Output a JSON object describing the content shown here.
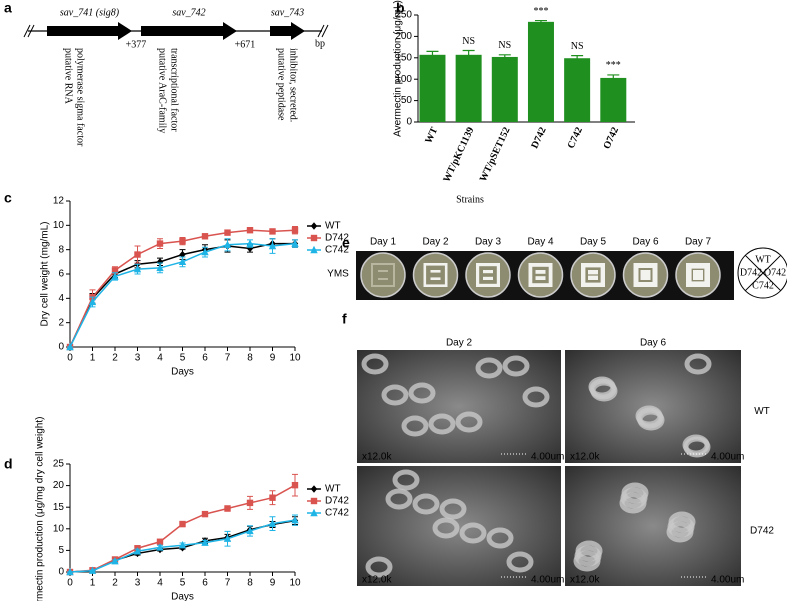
{
  "panel_labels": [
    "a",
    "b",
    "c",
    "d",
    "e",
    "f"
  ],
  "gene_map": {
    "genes": [
      {
        "name": "sav_741 (sig8)",
        "description": [
          "putative RNA",
          "polymerase sigma factor"
        ]
      },
      {
        "name": "sav_742",
        "description": [
          "putative AraC-family",
          "transcriptional factor"
        ]
      },
      {
        "name": "sav_743",
        "description": [
          "putative peptidase",
          "inhibitor, secreted."
        ]
      }
    ],
    "spacers": [
      "+377",
      "+671"
    ],
    "unit": "bp"
  },
  "chart_data": [
    {
      "type": "bar",
      "y_label": "Avermectin production (μg/mL)",
      "x_label": "Strains",
      "categories": [
        "WT",
        "WT/pKC1139",
        "WT/pSET152",
        "D742",
        "C742",
        "O742"
      ],
      "values": [
        157,
        157,
        152,
        234,
        149,
        103
      ],
      "errors": [
        8,
        10,
        5,
        3,
        6,
        7
      ],
      "annotations": [
        null,
        "NS",
        "NS",
        "***",
        "NS",
        "***"
      ],
      "color": "#1f8f1f",
      "ylim": [
        0,
        250
      ],
      "yticks": [
        0,
        50,
        100,
        150,
        200,
        250
      ]
    },
    {
      "type": "line",
      "y_label": "Dry cell weight (mg/mL)",
      "x_label": "Days",
      "x": [
        0,
        1,
        2,
        3,
        4,
        5,
        6,
        7,
        8,
        9,
        10
      ],
      "xlim": [
        0,
        10
      ],
      "xticks": [
        0,
        1,
        2,
        3,
        4,
        5,
        6,
        7,
        8,
        9,
        10
      ],
      "ylim": [
        0,
        12
      ],
      "yticks": [
        0,
        2,
        4,
        6,
        8,
        10,
        12
      ],
      "legend": "right",
      "series": [
        {
          "name": "WT",
          "color": "#000000",
          "marker": "diamond",
          "values": [
            0,
            4.0,
            6.0,
            6.8,
            7.0,
            7.6,
            8.0,
            8.3,
            8.1,
            8.5,
            8.5
          ],
          "errors": [
            0,
            0.4,
            0.3,
            0.3,
            0.3,
            0.4,
            0.4,
            0.5,
            0.3,
            0.4,
            0.3
          ]
        },
        {
          "name": "D742",
          "color": "#d9534f",
          "marker": "square",
          "values": [
            0,
            4.1,
            6.3,
            7.6,
            8.5,
            8.7,
            9.1,
            9.4,
            9.6,
            9.5,
            9.6
          ],
          "errors": [
            0,
            0.6,
            0.3,
            0.7,
            0.4,
            0.3,
            0.2,
            0.1,
            0.1,
            0.1,
            0.3
          ]
        },
        {
          "name": "C742",
          "color": "#1eb4e6",
          "marker": "triangle",
          "values": [
            0,
            3.7,
            5.8,
            6.4,
            6.5,
            7.0,
            7.8,
            8.4,
            8.5,
            8.3,
            8.5
          ],
          "errors": [
            0,
            0.4,
            0.3,
            0.4,
            0.4,
            0.4,
            0.4,
            0.5,
            0.3,
            0.6,
            0.3
          ]
        }
      ]
    },
    {
      "type": "line",
      "y_label": "Avermectin production (μg/mg dry cell weight)",
      "x_label": "Days",
      "x": [
        0,
        1,
        2,
        3,
        4,
        5,
        6,
        7,
        8,
        9,
        10
      ],
      "xlim": [
        0,
        10
      ],
      "xticks": [
        0,
        1,
        2,
        3,
        4,
        5,
        6,
        7,
        8,
        9,
        10
      ],
      "ylim": [
        0,
        25
      ],
      "yticks": [
        0,
        5,
        10,
        15,
        20,
        25
      ],
      "legend": "right",
      "series": [
        {
          "name": "WT",
          "color": "#000000",
          "marker": "diamond",
          "values": [
            0,
            0.3,
            2.7,
            4.3,
            5.2,
            5.6,
            7.2,
            8.0,
            9.8,
            11.0,
            11.9
          ],
          "errors": [
            0,
            0.1,
            0.3,
            0.4,
            0.3,
            0.3,
            0.6,
            0.7,
            0.8,
            0.7,
            0.9
          ]
        },
        {
          "name": "D742",
          "color": "#d9534f",
          "marker": "square",
          "values": [
            0,
            0.4,
            2.9,
            5.5,
            7.0,
            11.1,
            13.4,
            14.7,
            16.0,
            17.2,
            20.1
          ],
          "errors": [
            0,
            0.1,
            0.3,
            0.5,
            0.5,
            0.6,
            0.4,
            0.6,
            1.5,
            1.6,
            2.5
          ]
        },
        {
          "name": "C742",
          "color": "#1eb4e6",
          "marker": "triangle",
          "values": [
            0,
            0.3,
            2.5,
            4.8,
            5.7,
            6.2,
            6.8,
            7.7,
            9.5,
            11.2,
            12.0
          ],
          "errors": [
            0,
            0.1,
            0.3,
            0.5,
            0.5,
            0.5,
            0.5,
            1.7,
            1.2,
            1.6,
            1.2
          ]
        }
      ]
    }
  ],
  "plates": {
    "days": [
      "Day 1",
      "Day 2",
      "Day 3",
      "Day 4",
      "Day 5",
      "Day 6",
      "Day 7"
    ],
    "medium": "YMS",
    "key": {
      "top": "WT",
      "left": "D742",
      "right": "O742",
      "bottom": "C742"
    }
  },
  "sem": {
    "days": [
      "Day 2",
      "Day 6"
    ],
    "strains": [
      "WT",
      "D742"
    ],
    "magnification": "x12.0k",
    "scale": "4.00um"
  }
}
